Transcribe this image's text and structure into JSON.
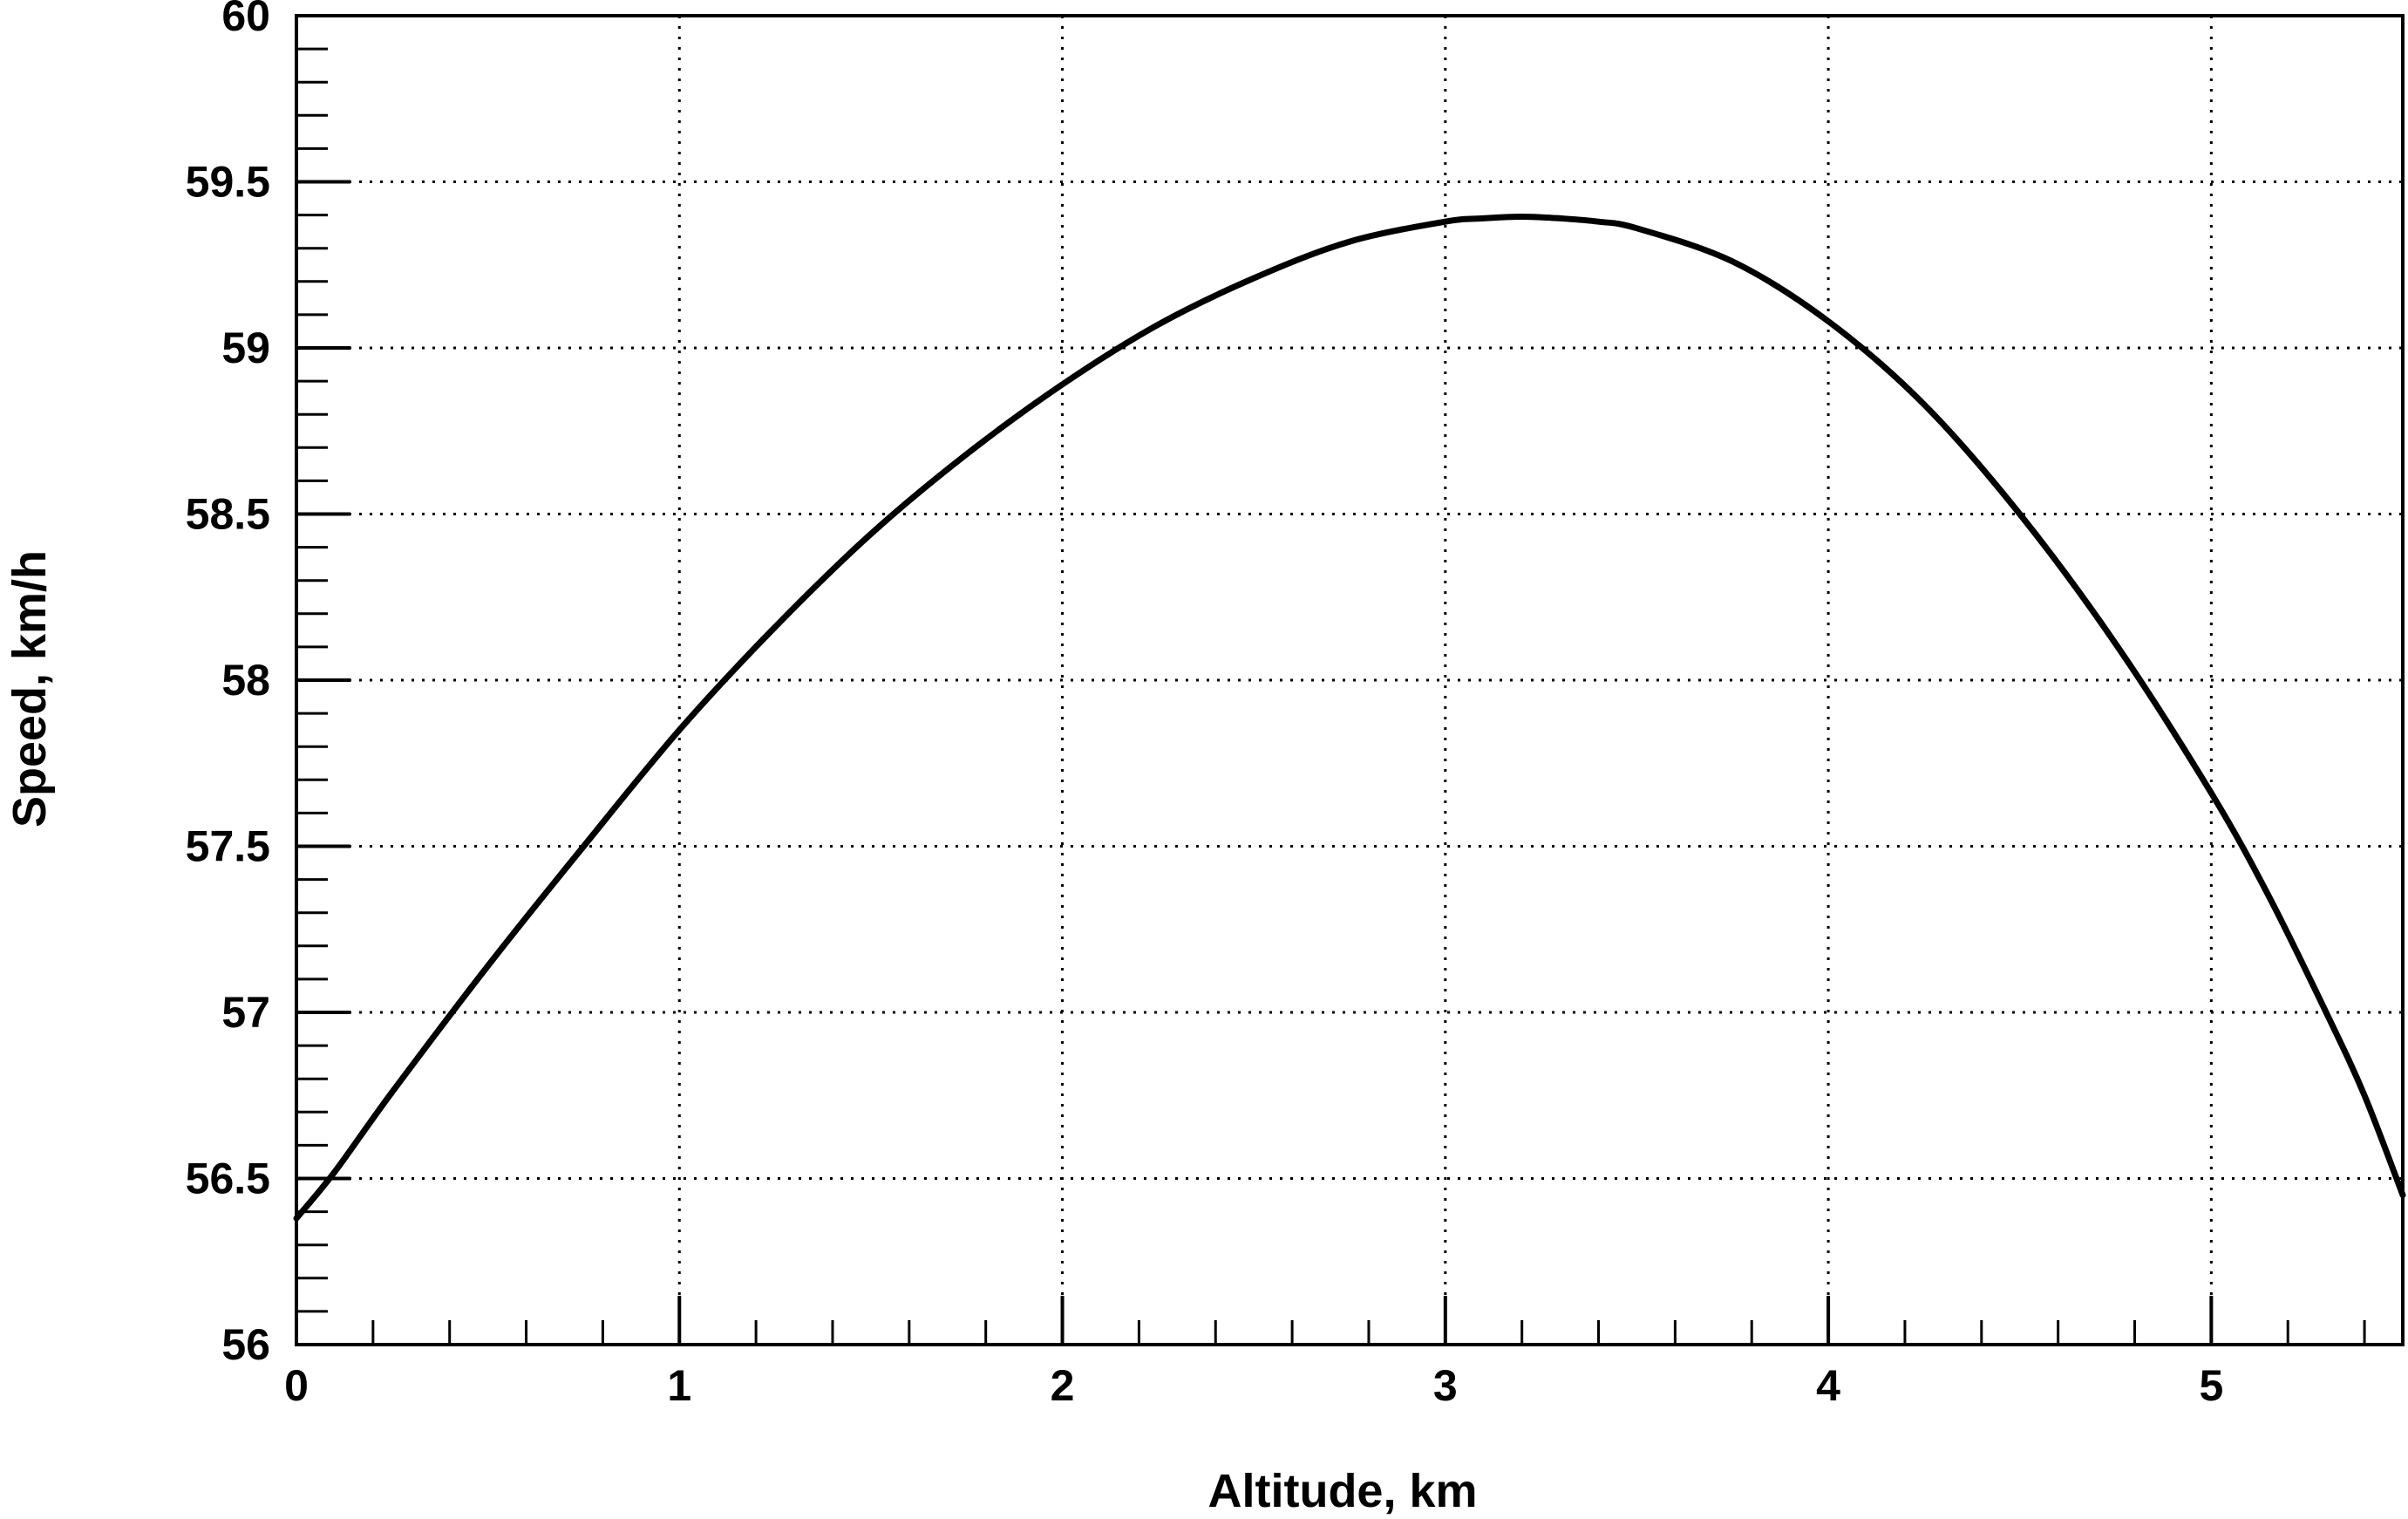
{
  "chart_data": {
    "type": "line",
    "title": "",
    "xlabel": "Altitude, km",
    "ylabel": "Speed, km/h",
    "xlim": [
      0,
      5.5
    ],
    "ylim": [
      56,
      60
    ],
    "xticks": [
      0,
      1,
      2,
      3,
      4,
      5
    ],
    "xtick_labels": [
      "0",
      "1",
      "2",
      "3",
      "4",
      "5"
    ],
    "yticks": [
      56,
      56.5,
      57,
      57.5,
      58,
      58.5,
      59,
      59.5,
      60
    ],
    "ytick_labels": [
      "56",
      "56.5",
      "57",
      "57.5",
      "58",
      "58.5",
      "59",
      "59.5",
      "60"
    ],
    "x_minor_step": 0.2,
    "y_minor_step": 0.1,
    "grid": true,
    "grid_style": "dotted",
    "line_color": "#000000",
    "series": [
      {
        "x": [
          0,
          0.1,
          0.25,
          0.5,
          0.75,
          1.0,
          1.25,
          1.5,
          1.75,
          2.0,
          2.25,
          2.5,
          2.75,
          3.0,
          3.1,
          3.2,
          3.3,
          3.4,
          3.5,
          3.75,
          4.0,
          4.25,
          4.5,
          4.75,
          5.0,
          5.15,
          5.3,
          5.4,
          5.5
        ],
        "y": [
          56.38,
          56.52,
          56.76,
          57.14,
          57.5,
          57.85,
          58.16,
          58.44,
          58.68,
          58.89,
          59.07,
          59.21,
          59.32,
          59.38,
          59.39,
          59.395,
          59.39,
          59.38,
          59.36,
          59.26,
          59.08,
          58.83,
          58.5,
          58.11,
          57.66,
          57.35,
          57.0,
          56.75,
          56.45
        ]
      }
    ]
  }
}
